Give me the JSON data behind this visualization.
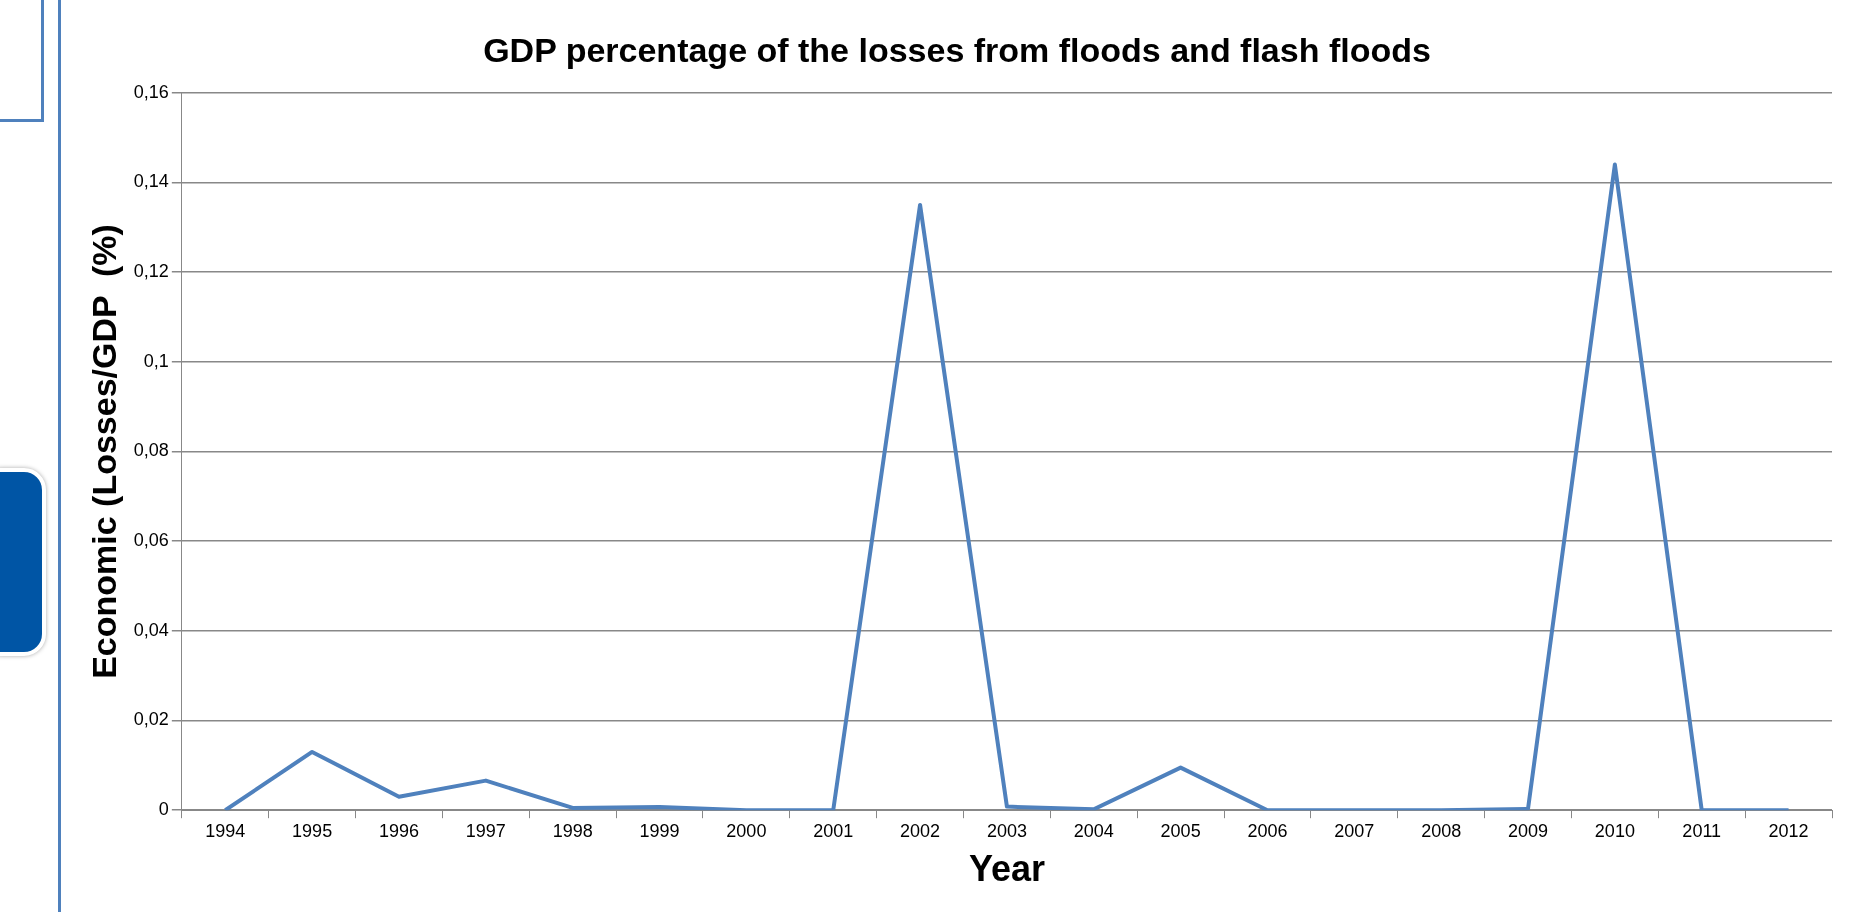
{
  "chart_data": {
    "type": "line",
    "title": "GDP percentage of the losses from floods and flash floods",
    "xlabel": "Year",
    "ylabel": "Economic (Losses/GDP  (%)",
    "categories": [
      "1994",
      "1995",
      "1996",
      "1997",
      "1998",
      "1999",
      "2000",
      "2001",
      "2002",
      "2003",
      "2004",
      "2005",
      "2006",
      "2007",
      "2008",
      "2009",
      "2010",
      "2011",
      "2012"
    ],
    "series": [
      {
        "color": "#4f81bd",
        "values": [
          0,
          0.013,
          0.003,
          0.0066,
          0.0005,
          0.0007,
          0,
          0,
          0.135,
          0.0008,
          0.0002,
          0.0095,
          0,
          0,
          0,
          0.0003,
          0.144,
          0,
          0
        ]
      }
    ],
    "ylim": [
      0,
      0.16
    ],
    "yticks": [
      0,
      {
        "value": 0.02,
        "label": "0,02"
      },
      {
        "value": 0.04,
        "label": "0,04"
      },
      {
        "value": 0.06,
        "label": "0,06"
      },
      {
        "value": 0.08,
        "label": "0,08"
      },
      {
        "value": 0.1,
        "label": "0,1"
      },
      {
        "value": 0.12,
        "label": "0,12"
      },
      {
        "value": 0.14,
        "label": "0,14"
      },
      {
        "value": 0.16,
        "label": "0,16"
      }
    ],
    "grid": "y",
    "legend": false,
    "marker": "none",
    "line_style": "solid"
  }
}
